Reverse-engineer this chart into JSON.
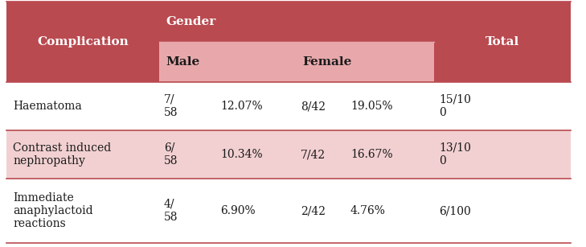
{
  "header_bg_dark": "#b94a50",
  "header_bg_light": "#e8a8ab",
  "row_bg_shaded": "#f2d0d1",
  "row_bg_white": "#ffffff",
  "border_color": "#b94a50",
  "text_white": "#ffffff",
  "text_dark": "#1a1a1a",
  "col_header": "Complication",
  "col_gender": "Gender",
  "col_male": "Male",
  "col_female": "Female",
  "col_total": "Total",
  "rows": [
    {
      "complication": "Haematoma",
      "male_frac": "7/\n58",
      "male_pct": "12.07%",
      "female_frac": "8/42",
      "female_pct": "19.05%",
      "total": "15/10\n0",
      "shaded": false
    },
    {
      "complication": "Contrast induced\nnephropathy",
      "male_frac": "6/\n58",
      "male_pct": "10.34%",
      "female_frac": "7/42",
      "female_pct": "16.67%",
      "total": "13/10\n0",
      "shaded": true
    },
    {
      "complication": "Immediate\nanaphylactoid\nreactions",
      "male_frac": "4/\n58",
      "male_pct": "6.90%",
      "female_frac": "2/42",
      "female_pct": "4.76%",
      "total": "6/100",
      "shaded": false
    }
  ],
  "figsize": [
    7.29,
    3.07
  ],
  "dpi": 100
}
